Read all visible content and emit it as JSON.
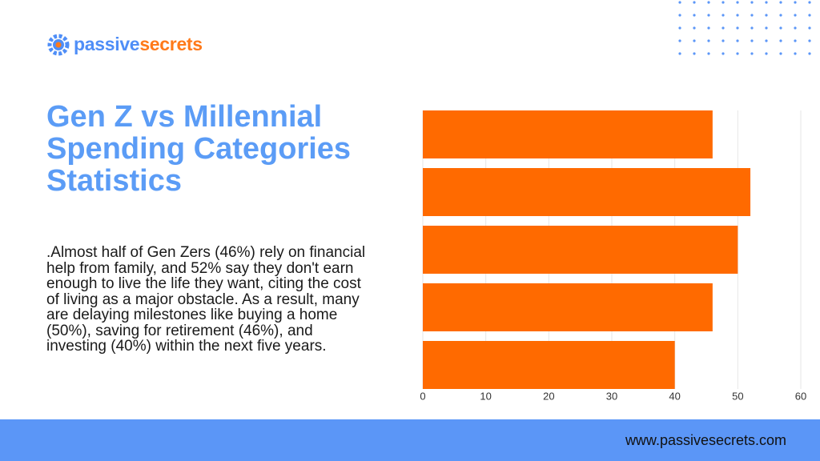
{
  "brand": {
    "part1": "passive",
    "part2": "secrets"
  },
  "title": "Gen Z vs Millennial Spending Categories Statistics",
  "body": ".Almost half of Gen Zers (46%) rely on financial help from family, and 52% say they don't earn enough to live the life they want, citing the cost of living as a major obstacle. As a result, many are delaying milestones like buying a home (50%), saving for retirement (46%), and investing (40%) within the next five years.",
  "website": "www.passivesecrets.com",
  "chart_data": {
    "type": "barh",
    "categories": [
      null,
      null,
      null,
      null,
      null
    ],
    "values": [
      46,
      52,
      50,
      46,
      40
    ],
    "color": "#ff6a00",
    "xlim": [
      0,
      60
    ],
    "xticks": [
      0,
      10,
      20,
      30,
      40,
      50,
      60
    ],
    "grid": true
  }
}
